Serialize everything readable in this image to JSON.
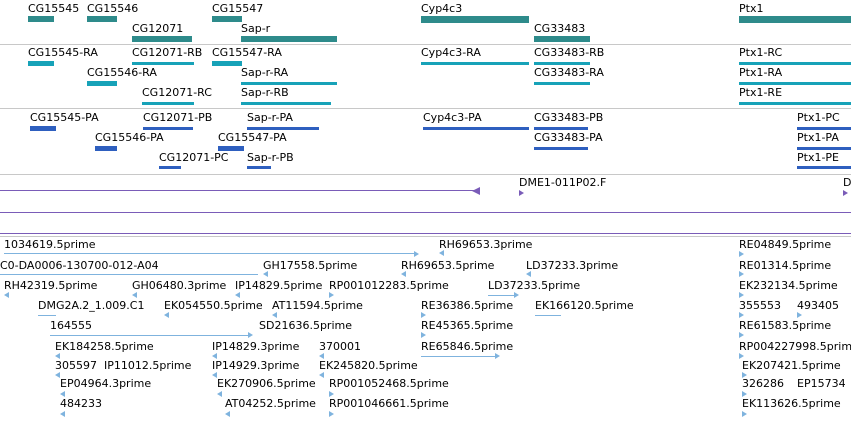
{
  "colors": {
    "gene": "#2e8b8b",
    "mrna": "#17a2b8",
    "protein": "#2e5fbf",
    "clone": "#7a5cb8",
    "est": "#7fb3de",
    "separator": "#c8c8c8"
  },
  "genes": [
    {
      "id": "g1",
      "label": "CG15545"
    },
    {
      "id": "g2",
      "label": "CG15546"
    },
    {
      "id": "g3",
      "label": "CG12071"
    },
    {
      "id": "g4",
      "label": "CG15547"
    },
    {
      "id": "g5",
      "label": "Sap-r"
    },
    {
      "id": "g6",
      "label": "Cyp4c3"
    },
    {
      "id": "g7",
      "label": "CG33483"
    },
    {
      "id": "g8",
      "label": "Ptx1"
    }
  ],
  "transcripts": [
    {
      "id": "t1",
      "label": "CG15545-RA"
    },
    {
      "id": "t2",
      "label": "CG12071-RB"
    },
    {
      "id": "t3",
      "label": "CG15547-RA"
    },
    {
      "id": "t4",
      "label": "CG15546-RA"
    },
    {
      "id": "t5",
      "label": "Sap-r-RA"
    },
    {
      "id": "t6",
      "label": "CG12071-RC"
    },
    {
      "id": "t7",
      "label": "Sap-r-RB"
    },
    {
      "id": "t8",
      "label": "Cyp4c3-RA"
    },
    {
      "id": "t9",
      "label": "CG33483-RB"
    },
    {
      "id": "t10",
      "label": "CG33483-RA"
    },
    {
      "id": "t11",
      "label": "Ptx1-RC"
    },
    {
      "id": "t12",
      "label": "Ptx1-RA"
    },
    {
      "id": "t13",
      "label": "Ptx1-RE"
    }
  ],
  "proteins": [
    {
      "id": "p1",
      "label": "CG15545-PA"
    },
    {
      "id": "p2",
      "label": "CG12071-PB"
    },
    {
      "id": "p3",
      "label": "Sap-r-PA"
    },
    {
      "id": "p4",
      "label": "CG15546-PA"
    },
    {
      "id": "p5",
      "label": "CG15547-PA"
    },
    {
      "id": "p6",
      "label": "CG12071-PC"
    },
    {
      "id": "p7",
      "label": "Sap-r-PB"
    },
    {
      "id": "p8",
      "label": "Cyp4c3-PA"
    },
    {
      "id": "p9",
      "label": "CG33483-PB"
    },
    {
      "id": "p10",
      "label": "CG33483-PA"
    },
    {
      "id": "p11",
      "label": "Ptx1-PC"
    },
    {
      "id": "p12",
      "label": "Ptx1-PA"
    },
    {
      "id": "p13",
      "label": "Ptx1-PE"
    }
  ],
  "clones": [
    {
      "id": "c1",
      "label": "DME1-011P02.F"
    },
    {
      "id": "c2",
      "label": "D"
    }
  ],
  "ests": [
    {
      "id": "e1",
      "label": "1034619.5prime"
    },
    {
      "id": "e2",
      "label": "RH69653.3prime"
    },
    {
      "id": "e3",
      "label": "RE04849.5prime"
    },
    {
      "id": "e4",
      "label": "C0-DA0006-130700-012-A04"
    },
    {
      "id": "e5",
      "label": "GH17558.5prime"
    },
    {
      "id": "e6",
      "label": "RH69653.5prime"
    },
    {
      "id": "e7",
      "label": "LD37233.3prime"
    },
    {
      "id": "e8",
      "label": "RE01314.5prime"
    },
    {
      "id": "e9",
      "label": "RH42319.5prime"
    },
    {
      "id": "e10",
      "label": "GH06480.3prime"
    },
    {
      "id": "e11",
      "label": "IP14829.5prime"
    },
    {
      "id": "e12",
      "label": "RP001012283.5prime"
    },
    {
      "id": "e13",
      "label": "LD37233.5prime"
    },
    {
      "id": "e14",
      "label": "EK232134.5prime"
    },
    {
      "id": "e15",
      "label": "DMG2A.2_1.009.C1"
    },
    {
      "id": "e16",
      "label": "EK054550.5prime"
    },
    {
      "id": "e17",
      "label": "AT11594.5prime"
    },
    {
      "id": "e18",
      "label": "RE36386.5prime"
    },
    {
      "id": "e19",
      "label": "EK166120.5prime"
    },
    {
      "id": "e20",
      "label": "355553"
    },
    {
      "id": "e21",
      "label": "493405"
    },
    {
      "id": "e22",
      "label": "164555"
    },
    {
      "id": "e23",
      "label": "SD21636.5prime"
    },
    {
      "id": "e24",
      "label": "RE45365.5prime"
    },
    {
      "id": "e25",
      "label": "RE61583.5prime"
    },
    {
      "id": "e26",
      "label": "EK184258.5prime"
    },
    {
      "id": "e27",
      "label": "IP14829.3prime"
    },
    {
      "id": "e28",
      "label": "370001"
    },
    {
      "id": "e29",
      "label": "RE65846.5prime"
    },
    {
      "id": "e30",
      "label": "RP004227998.5prime"
    },
    {
      "id": "e31",
      "label": "305597"
    },
    {
      "id": "e32",
      "label": "IP11012.5prime"
    },
    {
      "id": "e33",
      "label": "IP14929.3prime"
    },
    {
      "id": "e34",
      "label": "EK245820.5prime"
    },
    {
      "id": "e35",
      "label": "EK207421.5prime"
    },
    {
      "id": "e36",
      "label": "EP04964.3prime"
    },
    {
      "id": "e37",
      "label": "EK270906.5prime"
    },
    {
      "id": "e38",
      "label": "RP001052468.5prime"
    },
    {
      "id": "e39",
      "label": "326286"
    },
    {
      "id": "e40",
      "label": "EP15734"
    },
    {
      "id": "e41",
      "label": "484233"
    },
    {
      "id": "e42",
      "label": "AT04252.5prime"
    },
    {
      "id": "e43",
      "label": "RP001046661.5prime"
    },
    {
      "id": "e44",
      "label": "EK113626.5prime"
    }
  ]
}
